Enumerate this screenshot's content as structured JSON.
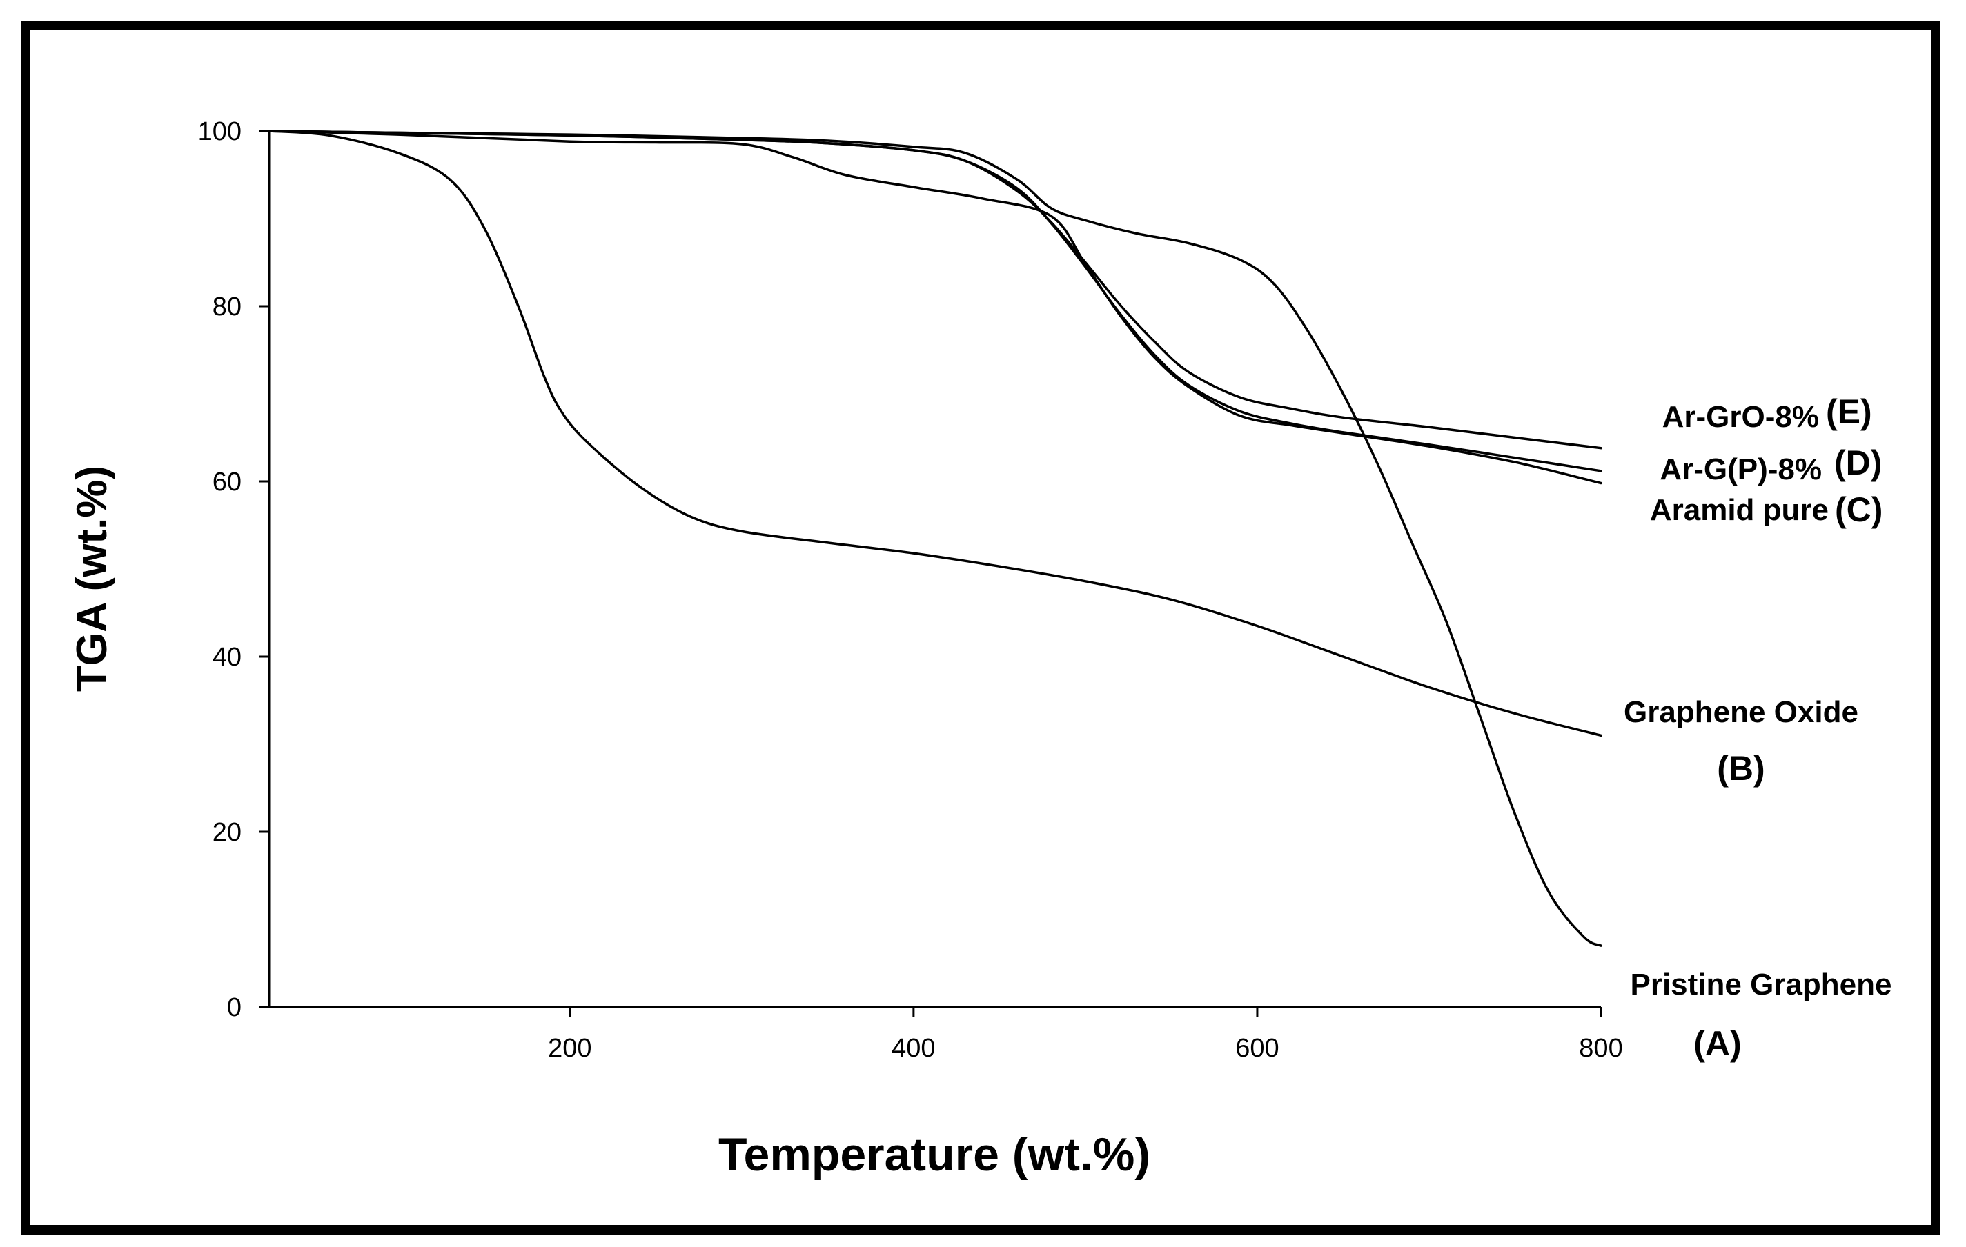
{
  "chart_data": {
    "type": "line",
    "title": "",
    "xlabel": "Temperature (wt.%)",
    "ylabel": "TGA (wt.%)",
    "xlim": [
      25,
      800
    ],
    "ylim": [
      0,
      100
    ],
    "x_ticks": [
      200,
      400,
      600,
      800
    ],
    "y_ticks": [
      0,
      20,
      40,
      60,
      80,
      100
    ],
    "grid": false,
    "line_color": "#000000",
    "series": [
      {
        "id": "A",
        "name": "Pristine Graphene",
        "letter": "(A)",
        "x": [
          25,
          100,
          200,
          300,
          350,
          400,
          430,
          460,
          480,
          500,
          530,
          560,
          590,
          610,
          630,
          650,
          670,
          690,
          710,
          730,
          750,
          770,
          790,
          800
        ],
        "y": [
          100,
          99.8,
          99.6,
          99.2,
          98.9,
          98.2,
          97.5,
          94.5,
          91.2,
          89.8,
          88.3,
          87.2,
          85.3,
          82.5,
          77,
          70,
          62,
          53,
          44,
          33,
          22,
          13,
          8,
          7
        ]
      },
      {
        "id": "B",
        "name": "Graphene Oxide",
        "letter": "(B)",
        "x": [
          25,
          60,
          100,
          130,
          150,
          170,
          185,
          195,
          210,
          240,
          270,
          300,
          350,
          400,
          450,
          500,
          550,
          600,
          650,
          700,
          750,
          800
        ],
        "y": [
          100,
          99.5,
          97.5,
          94.5,
          89,
          80,
          72,
          68,
          64.5,
          59.5,
          56,
          54.3,
          53,
          51.8,
          50.3,
          48.6,
          46.5,
          43.5,
          40,
          36.5,
          33.5,
          31
        ]
      },
      {
        "id": "C",
        "name": "Aramid pure",
        "letter": "(C)",
        "x": [
          25,
          100,
          200,
          250,
          300,
          330,
          360,
          400,
          440,
          480,
          500,
          520,
          540,
          560,
          590,
          620,
          650,
          700,
          750,
          800
        ],
        "y": [
          100,
          99.6,
          98.8,
          98.7,
          98.5,
          97,
          95,
          93.6,
          92.3,
          90.3,
          84.8,
          79,
          74.2,
          70.8,
          67.5,
          66.4,
          65.5,
          64,
          62.2,
          59.8
        ]
      },
      {
        "id": "D",
        "name": "Ar-G(P)-8%",
        "letter": "(D)",
        "x": [
          25,
          100,
          200,
          300,
          350,
          400,
          430,
          460,
          480,
          500,
          520,
          540,
          560,
          590,
          620,
          650,
          700,
          750,
          800
        ],
        "y": [
          100,
          99.8,
          99.5,
          99,
          98.6,
          97.8,
          96.6,
          93.5,
          89.5,
          84.5,
          79.2,
          74.5,
          71,
          68,
          66.6,
          65.6,
          64.2,
          62.7,
          61.2
        ]
      },
      {
        "id": "E",
        "name": "Ar-GrO-8%",
        "letter": "(E)",
        "x": [
          25,
          100,
          200,
          300,
          350,
          400,
          430,
          460,
          480,
          500,
          520,
          540,
          560,
          590,
          620,
          650,
          700,
          750,
          800
        ],
        "y": [
          100,
          99.8,
          99.5,
          99,
          98.6,
          97.8,
          96.6,
          93.2,
          89.6,
          85,
          80.2,
          76,
          72.5,
          69.6,
          68.3,
          67.3,
          66.2,
          65,
          63.8
        ]
      }
    ]
  }
}
